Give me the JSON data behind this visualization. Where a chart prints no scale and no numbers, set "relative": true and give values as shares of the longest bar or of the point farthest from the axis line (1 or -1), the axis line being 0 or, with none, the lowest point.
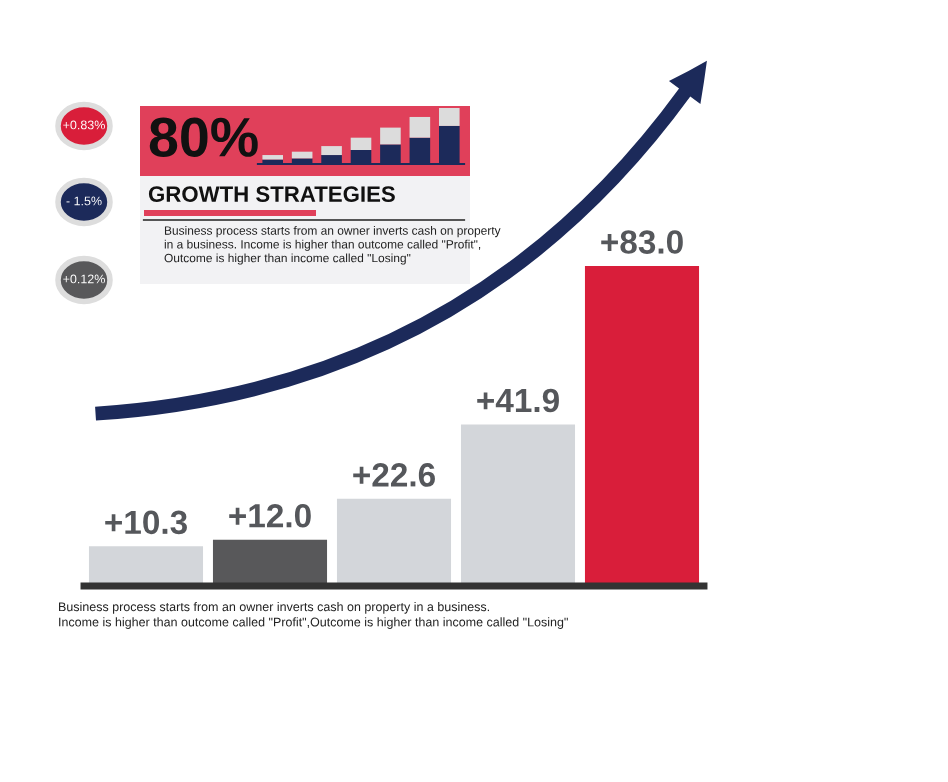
{
  "chart_data": [
    {
      "type": "bar",
      "categories": [
        null,
        null,
        null,
        null,
        null
      ],
      "values": [
        10.3,
        12.0,
        22.6,
        41.9,
        83.0
      ],
      "colors": [
        "#d3d6da",
        "#58585a",
        "#d3d6da",
        "#d3d6da",
        "#d91e3a"
      ],
      "value_labels": [
        "+10.3",
        "+12.0",
        "+22.6",
        "+41.9",
        "+83.0"
      ],
      "annotations": [
        "+0.83%",
        "- 1.5%",
        "+0.12%",
        "80%",
        "GROWTH STRATEGIES",
        "Business process starts from an owner inverts cash on property\nin a business. Income is higher than outcome called \"Profit\",\nOutcome is higher than income called \"Losing\"",
        "Business process starts from an owner inverts cash on property in a business.\nIncome is higher than outcome called \"Profit\",Outcome is higher than income called \"Losing\""
      ],
      "grid": false,
      "legend": false,
      "tick_labels": false
    },
    {
      "type": "bar",
      "stacked": true,
      "relative": true,
      "categories": [
        null,
        null,
        null,
        null,
        null,
        null,
        null
      ],
      "series": [
        {
          "color": "#1c2a5a",
          "values": [
            0.08,
            0.1,
            0.16,
            0.25,
            0.35,
            0.47,
            0.68
          ]
        },
        {
          "color": "#dcdcdc",
          "values": [
            0.08,
            0.12,
            0.16,
            0.22,
            0.3,
            0.37,
            0.32
          ]
        }
      ],
      "grid": false,
      "legend": false,
      "tick_labels": false
    }
  ]
}
